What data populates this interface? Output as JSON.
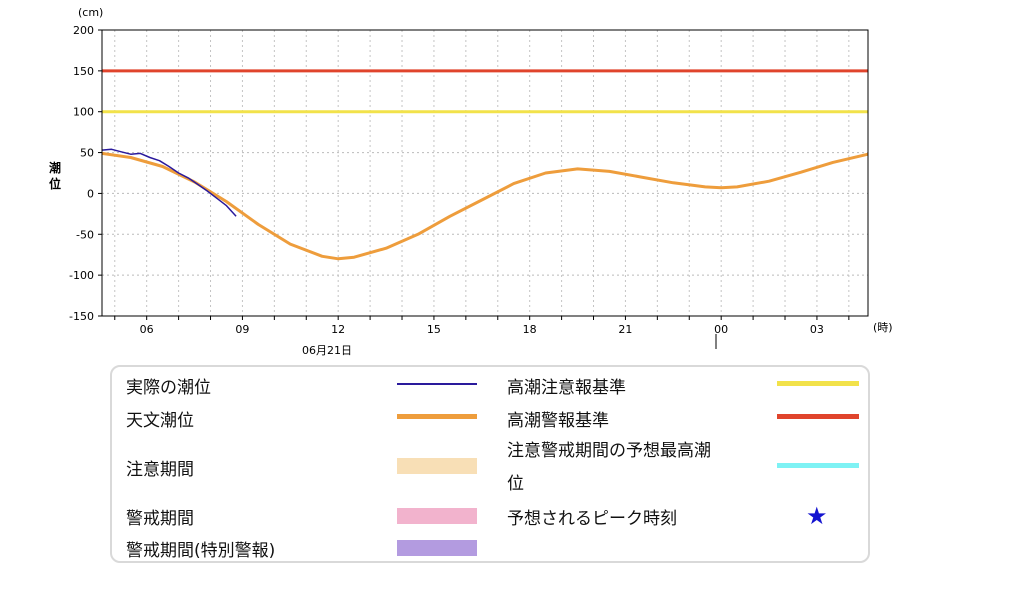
{
  "chart_data": {
    "type": "line",
    "unit_label": "(cm)",
    "ylabel": "潮位",
    "time_unit_label": "(時)",
    "date_label": "06月21日",
    "ylim": [
      -150,
      200
    ],
    "y_ticks": [
      "200",
      "150",
      "100",
      "50",
      "0",
      "-50",
      "-100",
      "-150"
    ],
    "x_range_hours": [
      4.6,
      28.6
    ],
    "x_ticks": [
      {
        "h": 6,
        "label": "06"
      },
      {
        "h": 9,
        "label": "09"
      },
      {
        "h": 12,
        "label": "12"
      },
      {
        "h": 15,
        "label": "15"
      },
      {
        "h": 18,
        "label": "18"
      },
      {
        "h": 21,
        "label": "21"
      },
      {
        "h": 24,
        "label": "00"
      },
      {
        "h": 27,
        "label": "03"
      }
    ],
    "grid": true,
    "thresholds": [
      {
        "name": "高潮警報基準",
        "value": 150,
        "color": "#e0442c"
      },
      {
        "name": "高潮注意報基準",
        "value": 100,
        "color": "#f2e24a"
      }
    ],
    "series": [
      {
        "name": "天文潮位",
        "color": "#ee9d3c",
        "x": [
          4.6,
          5.5,
          6.5,
          7.5,
          8.5,
          9.5,
          10.5,
          11.5,
          12.0,
          12.5,
          13.5,
          14.5,
          15.5,
          16.5,
          17.5,
          18.5,
          19.5,
          20.5,
          21.5,
          22.5,
          23.5,
          24.0,
          24.5,
          25.5,
          26.5,
          27.5,
          28.6
        ],
        "y": [
          49,
          44,
          33,
          14,
          -10,
          -38,
          -62,
          -77,
          -80,
          -78,
          -67,
          -50,
          -28,
          -8,
          12,
          25,
          30,
          27,
          20,
          13,
          8,
          7,
          8,
          15,
          26,
          38,
          48
        ]
      },
      {
        "name": "実際の潮位",
        "color": "#2a1a9c",
        "x": [
          4.6,
          4.9,
          5.2,
          5.5,
          5.8,
          6.1,
          6.4,
          6.7,
          7.0,
          7.3,
          7.6,
          7.9,
          8.2,
          8.5,
          8.8
        ],
        "y": [
          53,
          54,
          51,
          48,
          49,
          44,
          40,
          33,
          25,
          19,
          11,
          3,
          -6,
          -15,
          -28
        ]
      }
    ]
  },
  "legend": {
    "items": [
      {
        "label": "実際の潮位",
        "color": "#2a1a9c",
        "kind": "line"
      },
      {
        "label": "天文潮位",
        "color": "#ee9d3c",
        "kind": "line"
      },
      {
        "label": "注意期間",
        "color": "#f8dfb6",
        "kind": "band"
      },
      {
        "label": "警戒期間",
        "color": "#f2b3cd",
        "kind": "band"
      },
      {
        "label": "警戒期間(特別警報)",
        "color": "#b39be0",
        "kind": "band"
      },
      {
        "label": "高潮注意報基準",
        "color": "#f2e24a",
        "kind": "line"
      },
      {
        "label": "高潮警報基準",
        "color": "#e0442c",
        "kind": "line"
      },
      {
        "label_line1": "注意警戒期間の予想最高潮",
        "label_line2": "位",
        "color": "#7ef2f4",
        "kind": "line"
      },
      {
        "label": "予想されるピーク時刻",
        "color": "#1414d0",
        "kind": "star",
        "symbol": "★"
      }
    ]
  }
}
